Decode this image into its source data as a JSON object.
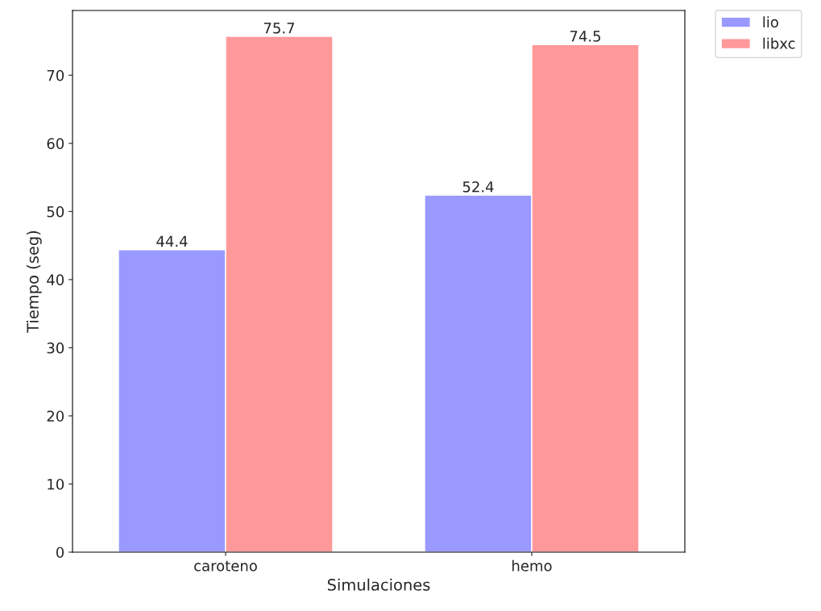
{
  "chart_data": {
    "type": "bar",
    "xlabel": "Simulaciones",
    "ylabel": "Tiempo (seg)",
    "categories": [
      "caroteno",
      "hemo"
    ],
    "series": [
      {
        "name": "lio",
        "color": "#9999ff",
        "values": [
          44.4,
          52.4
        ]
      },
      {
        "name": "libxc",
        "color": "#ff9999",
        "values": [
          75.7,
          74.5
        ]
      }
    ],
    "ylim": [
      0,
      79.5
    ],
    "yticks": [
      0,
      10,
      20,
      30,
      40,
      50,
      60,
      70
    ],
    "data_labels": true,
    "legend": "top right",
    "grid": false
  }
}
